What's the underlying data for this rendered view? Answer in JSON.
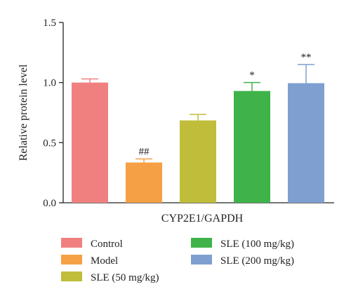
{
  "chart_data": {
    "type": "bar",
    "ylabel": "Relative protein level",
    "xlabel": "CYP2E1/GAPDH",
    "ylim": [
      0,
      1.5
    ],
    "yticks": [
      0.0,
      0.5,
      1.0,
      1.5
    ],
    "ytick_labels": [
      "0.0",
      "0.5",
      "1.0",
      "1.5"
    ],
    "grid": false,
    "legend_position": "bottom",
    "series": [
      {
        "name": "Control",
        "value": 1.0,
        "error": 0.03,
        "color": "#f08080",
        "annotation": ""
      },
      {
        "name": "Model",
        "value": 0.335,
        "error": 0.03,
        "color": "#f5a045",
        "annotation": "##"
      },
      {
        "name": "SLE (50 mg/kg)",
        "value": 0.685,
        "error": 0.05,
        "color": "#bfbd3a",
        "annotation": ""
      },
      {
        "name": "SLE (100 mg/kg)",
        "value": 0.93,
        "error": 0.07,
        "color": "#3fb34a",
        "annotation": "*"
      },
      {
        "name": "SLE (200 mg/kg)",
        "value": 0.995,
        "error": 0.155,
        "color": "#7f9fd0",
        "annotation": "**"
      }
    ]
  }
}
